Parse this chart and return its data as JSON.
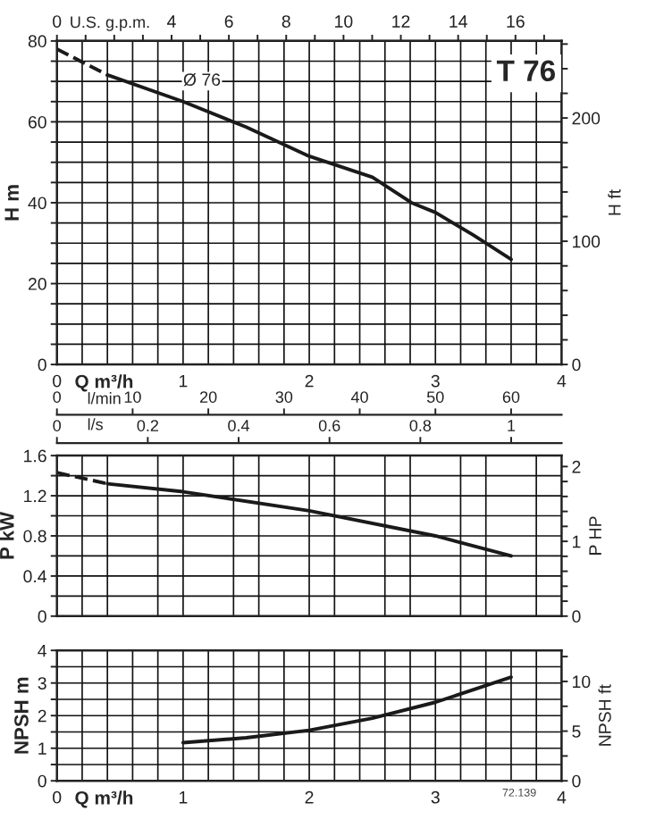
{
  "chart_data": [
    {
      "type": "line",
      "title": "T 76",
      "xlabel": "Q m³/h",
      "ylabel": "H m",
      "y2label": "H ft",
      "x2label": "U.S. g.p.m.",
      "xlim": [
        0,
        4
      ],
      "xticks": [
        0,
        {
          "value": 0.2,
          "label": null
        },
        {
          "value": 0.4,
          "label": null
        },
        {
          "value": 0.6,
          "label": null
        },
        {
          "value": 0.8,
          "label": null
        },
        1,
        {
          "value": 1.2,
          "label": null
        },
        {
          "value": 1.4,
          "label": null
        },
        {
          "value": 1.6,
          "label": null
        },
        {
          "value": 1.8,
          "label": null
        },
        2,
        {
          "value": 2.2,
          "label": null
        },
        {
          "value": 2.4,
          "label": null
        },
        {
          "value": 2.6,
          "label": null
        },
        {
          "value": 2.8,
          "label": null
        },
        3,
        {
          "value": 3.2,
          "label": null
        },
        {
          "value": 3.4,
          "label": null
        },
        {
          "value": 3.6,
          "label": null
        },
        {
          "value": 3.8,
          "label": null
        },
        4
      ],
      "ylim": [
        0,
        80
      ],
      "yticks": [
        0,
        {
          "value": 5,
          "label": null
        },
        {
          "value": 10,
          "label": null
        },
        {
          "value": 15,
          "label": null
        },
        20,
        {
          "value": 25,
          "label": null
        },
        {
          "value": 30,
          "label": null
        },
        {
          "value": 35,
          "label": null
        },
        40,
        {
          "value": 45,
          "label": null
        },
        {
          "value": 50,
          "label": null
        },
        {
          "value": 55,
          "label": null
        },
        60,
        {
          "value": 65,
          "label": null
        },
        {
          "value": 70,
          "label": null
        },
        {
          "value": 75,
          "label": null
        },
        80
      ],
      "y2lim": [
        0,
        262.5
      ],
      "y2ticks": [
        0,
        {
          "value": 20,
          "label": null
        },
        {
          "value": 40,
          "label": null
        },
        {
          "value": 60,
          "label": null
        },
        {
          "value": 80,
          "label": null
        },
        100,
        {
          "value": 120,
          "label": null
        },
        {
          "value": 140,
          "label": null
        },
        {
          "value": 160,
          "label": null
        },
        {
          "value": 180,
          "label": null
        },
        200,
        {
          "value": 220,
          "label": null
        },
        {
          "value": 240,
          "label": null
        },
        {
          "value": 260,
          "label": null
        }
      ],
      "x2lim": [
        0,
        17.61
      ],
      "x2ticks": [
        0,
        {
          "value": 1,
          "label": null
        },
        {
          "value": 2,
          "label": null
        },
        {
          "value": 3,
          "label": null
        },
        4,
        {
          "value": 5,
          "label": null
        },
        6,
        {
          "value": 7,
          "label": null
        },
        8,
        {
          "value": 9,
          "label": null
        },
        10,
        {
          "value": 11,
          "label": null
        },
        12,
        {
          "value": 13,
          "label": null
        },
        14,
        {
          "value": 15,
          "label": null
        },
        16,
        {
          "value": 17,
          "label": null
        }
      ],
      "grid": true,
      "annotations": [
        {
          "text": "Ø 76",
          "x": 1.0,
          "y": 65
        }
      ],
      "series": [
        {
          "color": "#1a1a1a",
          "line_style": "dashed",
          "x": [
            0,
            0.2,
            0.4
          ],
          "values": [
            78,
            74.8,
            71.6
          ]
        },
        {
          "color": "#1a1a1a",
          "line_style": "solid",
          "x": [
            0.4,
            1,
            1.5,
            2,
            2.5,
            2.81,
            3,
            3.3,
            3.6
          ],
          "values": [
            71.6,
            65,
            58.7,
            51.5,
            46.3,
            40,
            37.6,
            32,
            26
          ]
        }
      ]
    },
    {
      "type": "line",
      "xlabel": "l/min",
      "ylabel": "P kW",
      "y2label": "P HP",
      "x2label": "l/s",
      "xlim": [
        0,
        66.67
      ],
      "xticks": [
        0,
        {
          "value": 3.33,
          "label": null
        },
        {
          "value": 6.67,
          "label": null
        },
        10,
        {
          "value": 13.33,
          "label": null
        },
        {
          "value": 16.67,
          "label": null
        },
        20,
        {
          "value": 23.33,
          "label": null
        },
        {
          "value": 26.67,
          "label": null
        },
        30,
        {
          "value": 33.33,
          "label": null
        },
        {
          "value": 36.67,
          "label": null
        },
        40,
        {
          "value": 43.33,
          "label": null
        },
        {
          "value": 46.67,
          "label": null
        },
        50,
        {
          "value": 53.33,
          "label": null
        },
        {
          "value": 56.67,
          "label": null
        },
        60,
        {
          "value": 63.33,
          "label": null
        }
      ],
      "x2lim": [
        0,
        1.111
      ],
      "x2ticks": [
        0,
        0.2,
        0.4,
        0.6,
        0.8,
        1
      ],
      "ylim": [
        0,
        1.6
      ],
      "yticks": [
        0,
        {
          "value": 0.2,
          "label": null
        },
        0.4,
        {
          "value": 0.6,
          "label": null
        },
        0.8,
        {
          "value": 1.0,
          "label": null
        },
        1.2,
        {
          "value": 1.4,
          "label": null
        },
        1.6
      ],
      "y2lim": [
        0,
        2.146
      ],
      "y2ticks": [
        0,
        {
          "value": 0.2,
          "label": null
        },
        {
          "value": 0.4,
          "label": null
        },
        {
          "value": 0.6,
          "label": null
        },
        {
          "value": 0.8,
          "label": null
        },
        1,
        {
          "value": 1.2,
          "label": null
        },
        {
          "value": 1.4,
          "label": null
        },
        {
          "value": 1.6,
          "label": null
        },
        {
          "value": 1.8,
          "label": null
        },
        2
      ],
      "grid": true,
      "series": [
        {
          "color": "#1a1a1a",
          "line_style": "dashed",
          "x": [
            0,
            6.67
          ],
          "values": [
            1.43,
            1.32
          ]
        },
        {
          "color": "#1a1a1a",
          "line_style": "solid",
          "x": [
            6.67,
            16.67,
            33.33,
            50,
            60
          ],
          "values": [
            1.32,
            1.24,
            1.05,
            0.8,
            0.6
          ]
        }
      ]
    },
    {
      "type": "line",
      "xlabel": "Q m³/h",
      "ylabel": "NPSH m",
      "y2label": "NPSH ft",
      "xlim": [
        0,
        4
      ],
      "xticks": [
        0,
        {
          "value": 0.2,
          "label": null
        },
        {
          "value": 0.4,
          "label": null
        },
        {
          "value": 0.6,
          "label": null
        },
        {
          "value": 0.8,
          "label": null
        },
        1,
        {
          "value": 1.2,
          "label": null
        },
        {
          "value": 1.4,
          "label": null
        },
        {
          "value": 1.6,
          "label": null
        },
        {
          "value": 1.8,
          "label": null
        },
        2,
        {
          "value": 2.2,
          "label": null
        },
        {
          "value": 2.4,
          "label": null
        },
        {
          "value": 2.6,
          "label": null
        },
        {
          "value": 2.8,
          "label": null
        },
        3,
        {
          "value": 3.2,
          "label": null
        },
        {
          "value": 3.4,
          "label": null
        },
        {
          "value": 3.6,
          "label": null
        },
        {
          "value": 3.8,
          "label": null
        },
        4
      ],
      "ylim": [
        0,
        4
      ],
      "yticks": [
        0,
        {
          "value": 0.5,
          "label": null
        },
        1,
        {
          "value": 1.5,
          "label": null
        },
        2,
        {
          "value": 2.5,
          "label": null
        },
        3,
        {
          "value": 3.5,
          "label": null
        },
        4
      ],
      "y2lim": [
        0,
        13.12
      ],
      "y2ticks": [
        0,
        {
          "value": 2.5,
          "label": null
        },
        5,
        {
          "value": 7.5,
          "label": null
        },
        10,
        {
          "value": 12.5,
          "label": null
        }
      ],
      "grid": true,
      "annotations": [
        "72.139"
      ],
      "series": [
        {
          "color": "#1a1a1a",
          "line_style": "solid",
          "x": [
            1,
            1.5,
            2,
            2.5,
            3,
            3.6
          ],
          "values": [
            1.17,
            1.32,
            1.55,
            1.92,
            2.41,
            3.18
          ]
        }
      ]
    }
  ]
}
